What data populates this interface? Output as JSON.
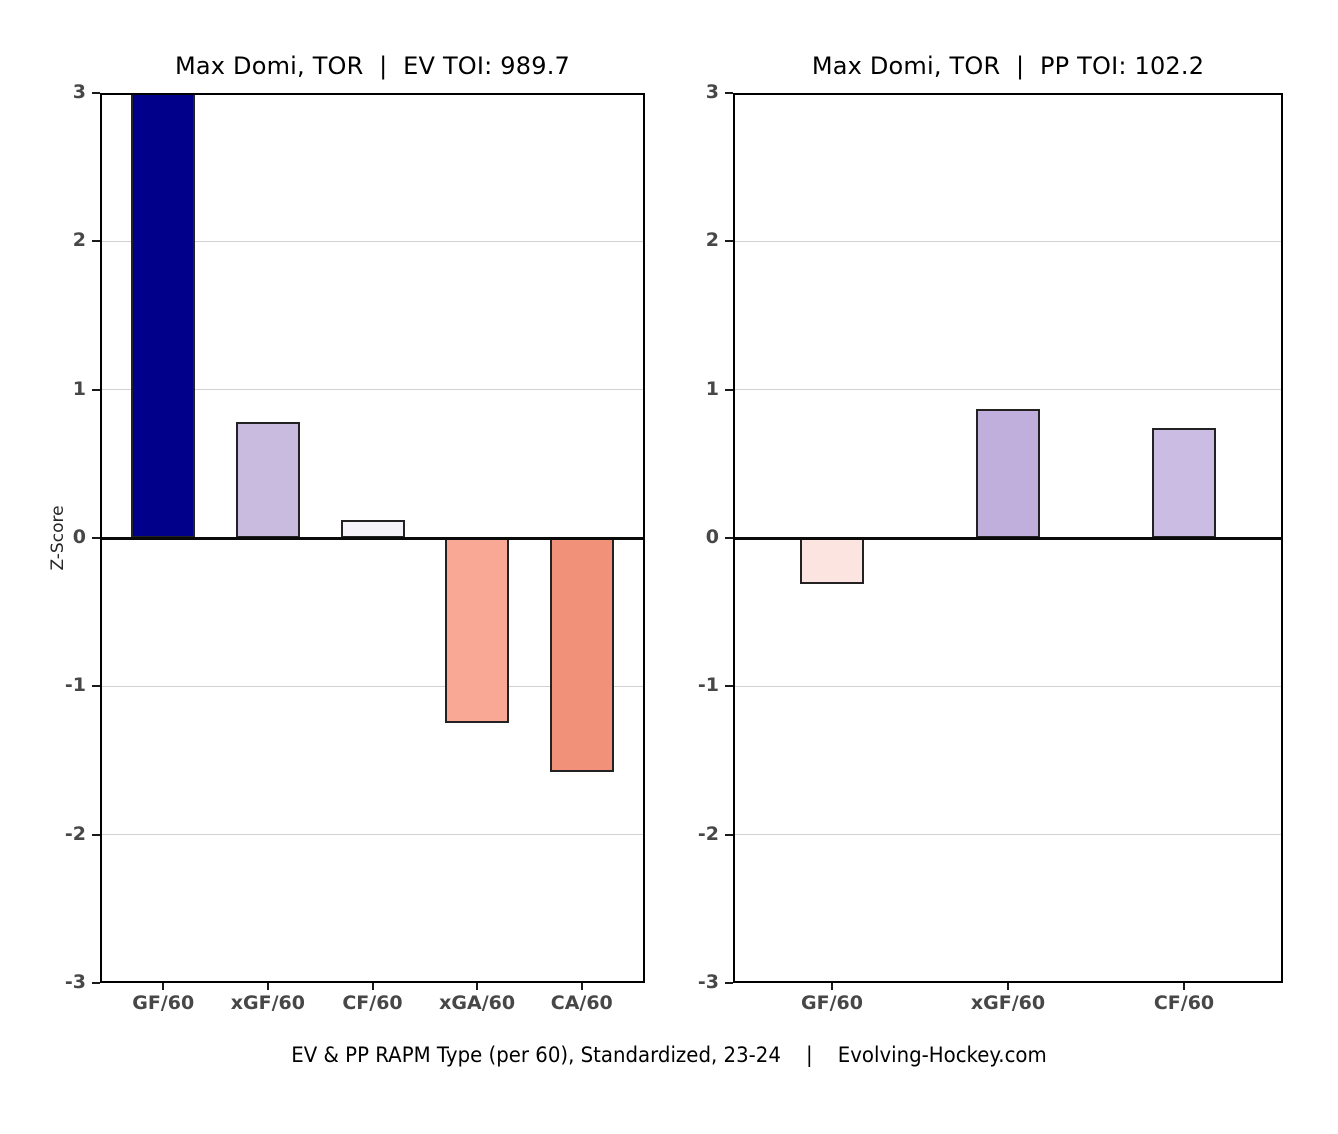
{
  "caption": "EV & PP RAPM Type (per 60), Standardized, 23-24    |    Evolving-Hockey.com",
  "axis": {
    "ylabel": "Z-Score",
    "ylim": [
      -3,
      3
    ],
    "yticks": [
      3,
      2,
      1,
      0,
      -1,
      -2,
      -3
    ]
  },
  "styles": {
    "grid_color": "#d2d2d2",
    "zero_line_color": "#0a0a0a",
    "frame_color": "#000000",
    "tick_label_color": "#474747",
    "bar_border_color": "#222222",
    "background": "#ffffff"
  },
  "chart_data": [
    {
      "type": "bar",
      "title": "Max Domi, TOR  |  EV TOI: 989.7",
      "categories": [
        "GF/60",
        "xGF/60",
        "CF/60",
        "xGA/60",
        "CA/60"
      ],
      "values": [
        3.0,
        0.78,
        0.12,
        -1.25,
        -1.58
      ],
      "clipped_at_top": [
        true,
        false,
        false,
        false,
        false
      ],
      "value_note": "GF/60 bar extends past the +3 axis limit and is clipped at the top of the plot",
      "bar_colors": [
        "#00008B",
        "#C9BBE0",
        "#F6F2F9",
        "#FAA896",
        "#F29179"
      ],
      "ylabel": "Z-Score",
      "ylim": [
        -3,
        3
      ],
      "yticks": [
        3,
        2,
        1,
        0,
        -1,
        -2,
        -3
      ],
      "grid": true,
      "legend": "none"
    },
    {
      "type": "bar",
      "title": "Max Domi, TOR  |  PP TOI: 102.2",
      "categories": [
        "GF/60",
        "xGF/60",
        "CF/60"
      ],
      "values": [
        -0.31,
        0.87,
        0.74
      ],
      "clipped_at_top": [
        false,
        false,
        false
      ],
      "bar_colors": [
        "#FCE5E0",
        "#C0AFDD",
        "#CABCE2"
      ],
      "ylabel": "",
      "ylim": [
        -3,
        3
      ],
      "yticks": [
        3,
        2,
        1,
        0,
        -1,
        -2,
        -3
      ],
      "grid": true,
      "legend": "none"
    }
  ]
}
